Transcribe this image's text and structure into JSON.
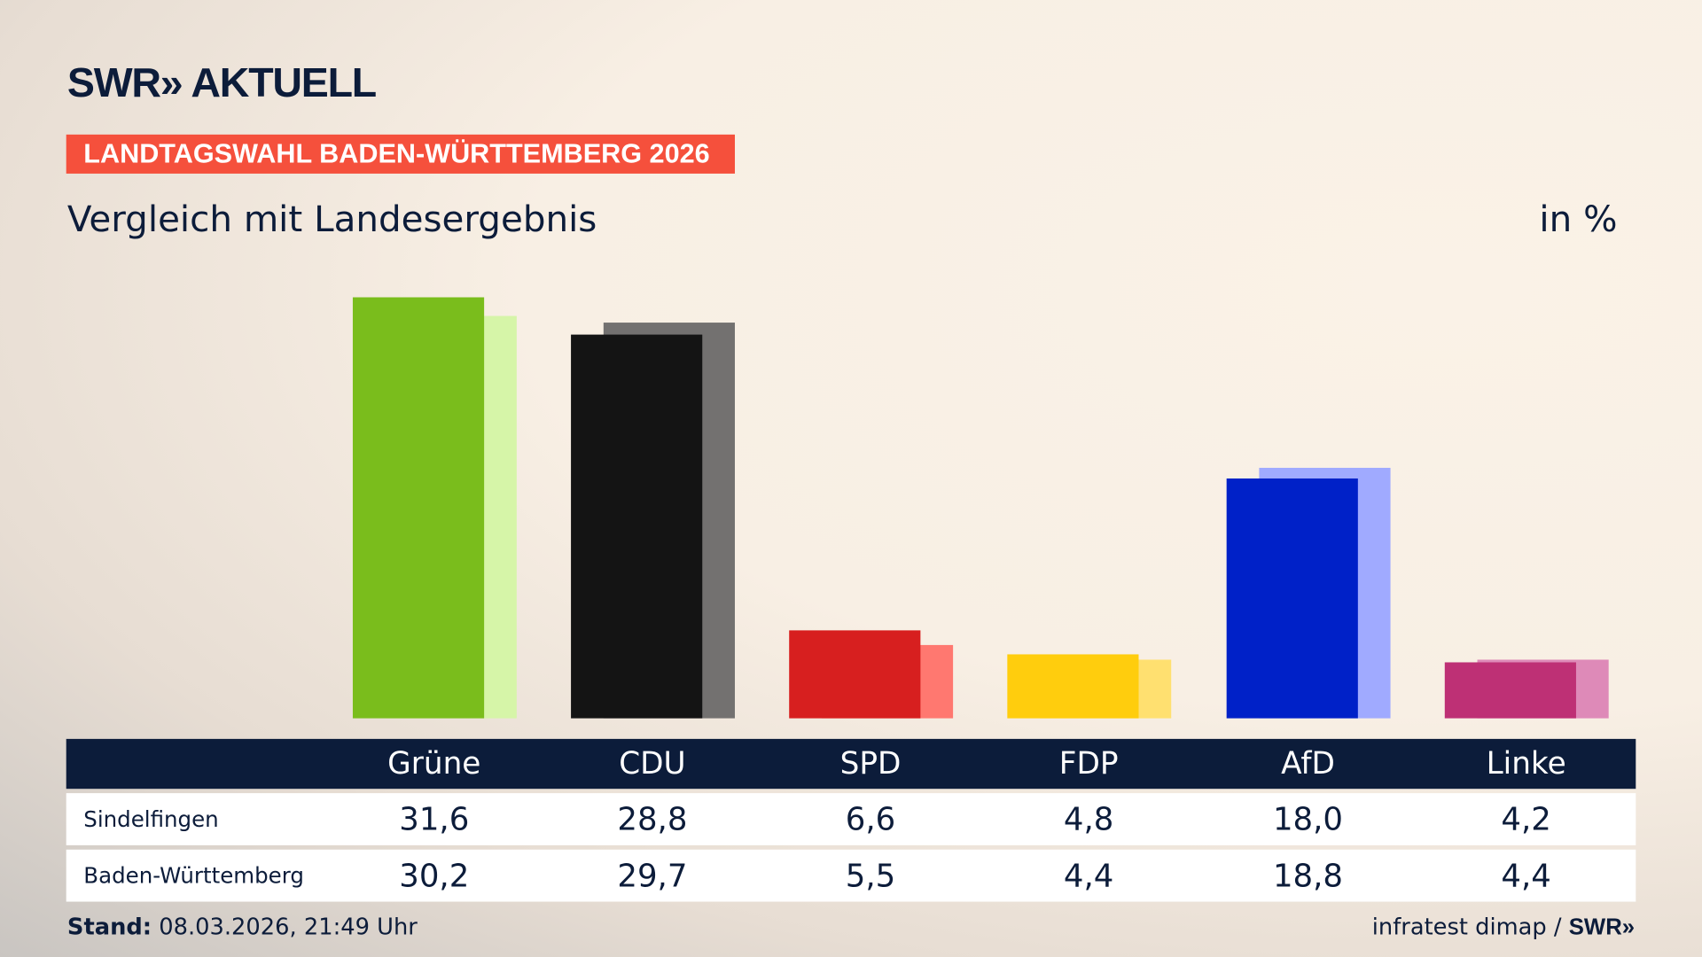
{
  "header": {
    "logo": "SWR» AKTUELL",
    "kicker": "LANDTAGSWAHL BADEN-WÜRTTEMBERG 2026",
    "title": "Vergleich mit Landesergebnis",
    "unit": "in %"
  },
  "footer": {
    "stand_label": "Stand:",
    "stand_value": "08.03.2026, 21:49 Uhr",
    "source": "infratest dimap /",
    "source_logo": "SWR»"
  },
  "chart_data": {
    "type": "bar",
    "title": "Vergleich mit Landesergebnis",
    "ylabel": "in %",
    "ylim": [
      0,
      31.6
    ],
    "grid": false,
    "categories": [
      "Grüne",
      "CDU",
      "SPD",
      "FDP",
      "AfD",
      "Linke"
    ],
    "colors": [
      "#7abd1c",
      "#141414",
      "#d71f1f",
      "#ffcd0d",
      "#0021c8",
      "#be3075"
    ],
    "light_colors": [
      "#d6f5a8",
      "#737170",
      "#ff7870",
      "#ffe070",
      "#a0aaff",
      "#de8ab8"
    ],
    "series": [
      {
        "name": "Sindelfingen",
        "values": [
          31.6,
          28.8,
          6.6,
          4.8,
          18.0,
          4.2
        ],
        "labels": [
          "31,6",
          "28,8",
          "6,6",
          "4,8",
          "18,0",
          "4,2"
        ]
      },
      {
        "name": "Baden-Württemberg",
        "values": [
          30.2,
          29.7,
          5.5,
          4.4,
          18.8,
          4.4
        ],
        "labels": [
          "30,2",
          "29,7",
          "5,5",
          "4,4",
          "18,8",
          "4,4"
        ]
      }
    ]
  }
}
